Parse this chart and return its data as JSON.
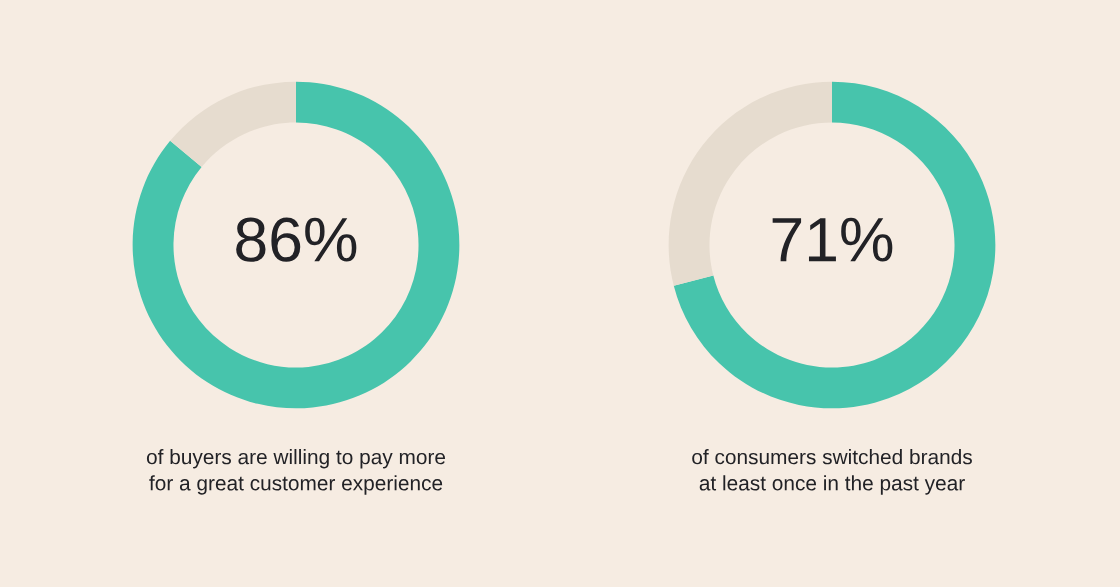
{
  "chart_data": [
    {
      "type": "donut",
      "categories": [
        null,
        null
      ],
      "values": [
        86,
        14
      ],
      "colors": [
        "#47c4ac",
        "#e6dccf"
      ],
      "value_labels": [
        "86%",
        null
      ],
      "annotations": [
        "of buyers are willing to pay more\nfor a great customer experience"
      ]
    },
    {
      "type": "donut",
      "categories": [
        null,
        null
      ],
      "values": [
        71,
        29
      ],
      "colors": [
        "#47c4ac",
        "#e6dccf"
      ],
      "value_labels": [
        "71%",
        null
      ],
      "annotations": [
        "of consumers switched brands\nat least once in the past year"
      ]
    }
  ]
}
